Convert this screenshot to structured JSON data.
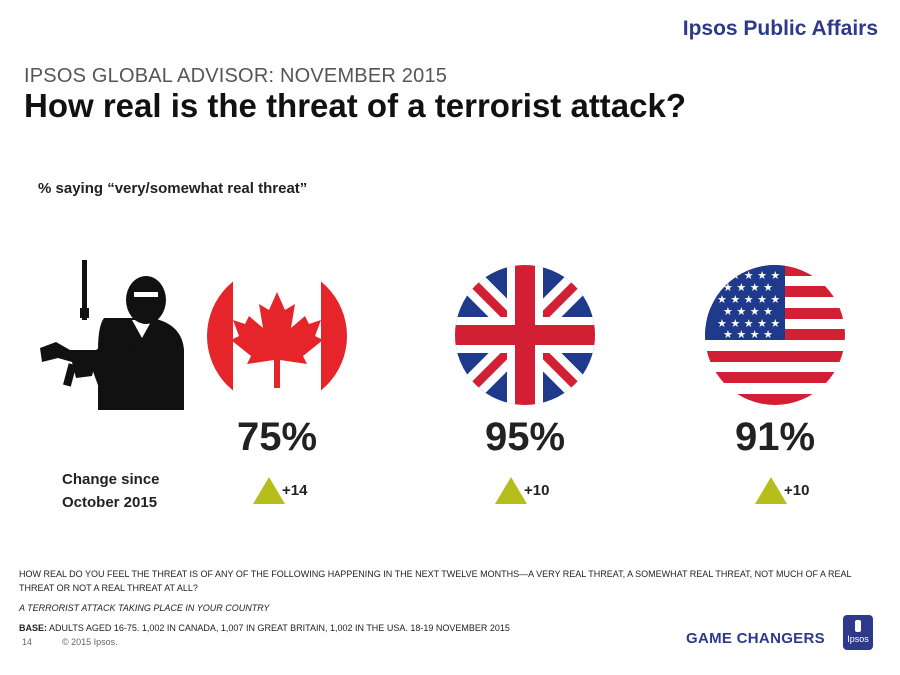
{
  "header": {
    "brand": "Ipsos Public Affairs",
    "kicker": "IPSOS GLOBAL ADVISOR: NOVEMBER 2015",
    "title": "How real is the threat of a terrorist attack?",
    "subtitle": "% saying “very/somewhat real threat”"
  },
  "chart_data": {
    "type": "table",
    "categories": [
      "Canada",
      "Great Britain",
      "USA"
    ],
    "series": [
      {
        "name": "% saying “very/somewhat real threat”",
        "values": [
          75,
          95,
          91
        ]
      },
      {
        "name": "Change since October 2015",
        "values": [
          14,
          10,
          10
        ]
      }
    ],
    "value_labels": [
      "75%",
      "95%",
      "91%"
    ],
    "change_labels": [
      "+14",
      "+10",
      "+10"
    ],
    "change_direction": "up",
    "change_color": "#b5bd1c"
  },
  "change_label_line1": "Change since",
  "change_label_line2": "October 2015",
  "icons": {
    "person": "masked-gunman-icon",
    "flags": [
      "canada-flag-icon",
      "uk-flag-icon",
      "usa-flag-icon"
    ]
  },
  "footer": {
    "question": "HOW REAL DO YOU FEEL THE THREAT IS OF ANY OF THE FOLLOWING HAPPENING IN THE NEXT TWELVE MONTHS—A VERY REAL THREAT, A SOMEWHAT REAL THREAT, NOT MUCH OF A REAL THREAT OR NOT A REAL THREAT AT ALL?",
    "topic": "A TERRORIST ATTACK TAKING PLACE IN YOUR COUNTRY",
    "base_label": "BASE:",
    "base_text": " ADULTS AGED 16-75. 1,002 IN CANADA, 1,007 IN GREAT BRITAIN, 1,002 IN THE USA. 18-19 NOVEMBER 2015",
    "page": "14",
    "copyright": "© 2015 Ipsos.",
    "tagline": "GAME CHANGERS",
    "logo_text": "Ipsos"
  },
  "colors": {
    "brand": "#2d3a8c",
    "triangle": "#b5bd1c"
  }
}
